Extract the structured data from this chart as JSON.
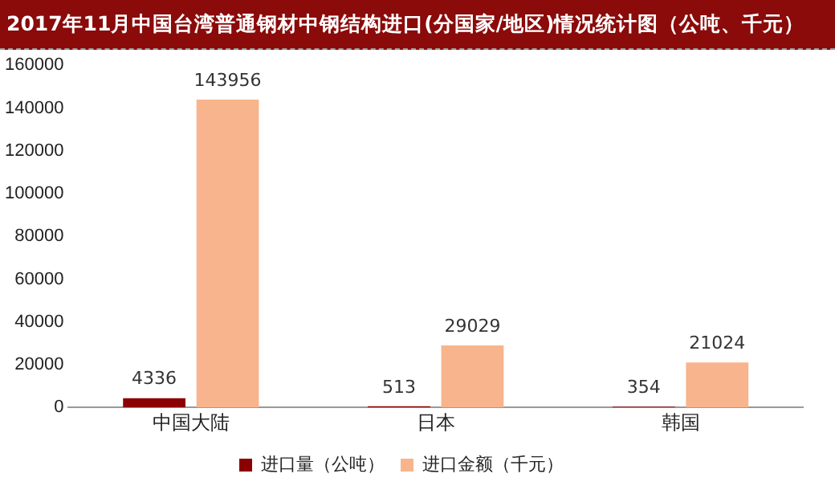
{
  "chart_data": {
    "type": "bar",
    "title": "2017年11月中国台湾普通钢材中钢结构进口(分国家/地区)情况统计图（公吨、千元）",
    "categories": [
      "中国大陆",
      "日本",
      "韩国"
    ],
    "series": [
      {
        "name": "进口量（公吨）",
        "color": "#8b0000",
        "values": [
          4336,
          513,
          354
        ]
      },
      {
        "name": "进口金额（千元）",
        "color": "#f8b48c",
        "values": [
          143956,
          29029,
          21024
        ]
      }
    ],
    "ylim": [
      0,
      160000
    ],
    "yticks": [
      0,
      20000,
      40000,
      60000,
      80000,
      100000,
      120000,
      140000,
      160000
    ],
    "grid": false,
    "legend": "bottom",
    "data_labels": true
  }
}
